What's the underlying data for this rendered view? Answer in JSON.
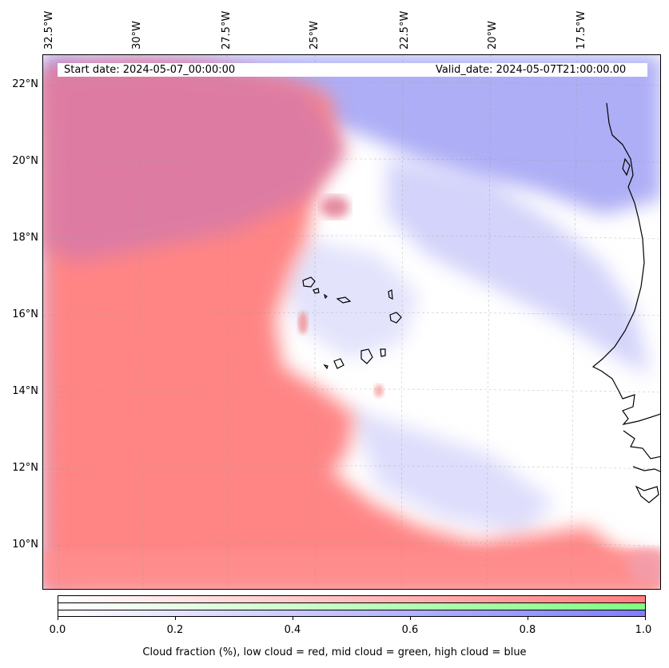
{
  "header": {
    "start_date": "Start date: 2024-05-07_00:00:00",
    "valid_date": "Valid_date: 2024-05-07T21:00:00.00"
  },
  "axes": {
    "lon_labels": [
      "32.5°W",
      "30°W",
      "27.5°W",
      "25°W",
      "22.5°W",
      "20°W",
      "17.5°W"
    ],
    "lat_labels": [
      "22°N",
      "20°N",
      "18°N",
      "16°N",
      "14°N",
      "12°N",
      "10°N"
    ]
  },
  "colorbar": {
    "ticks": [
      "0.0",
      "0.2",
      "0.4",
      "0.6",
      "0.8",
      "1.0"
    ],
    "title": "Cloud fraction (%), low cloud = red, mid cloud = green, high cloud = blue",
    "colors": {
      "low": "#ff7f7f",
      "mid": "#7fff7f",
      "high": "#7f7fff"
    }
  },
  "map": {
    "layers": [
      "low-cloud",
      "high-cloud",
      "coastline",
      "islands",
      "gridlines"
    ]
  }
}
